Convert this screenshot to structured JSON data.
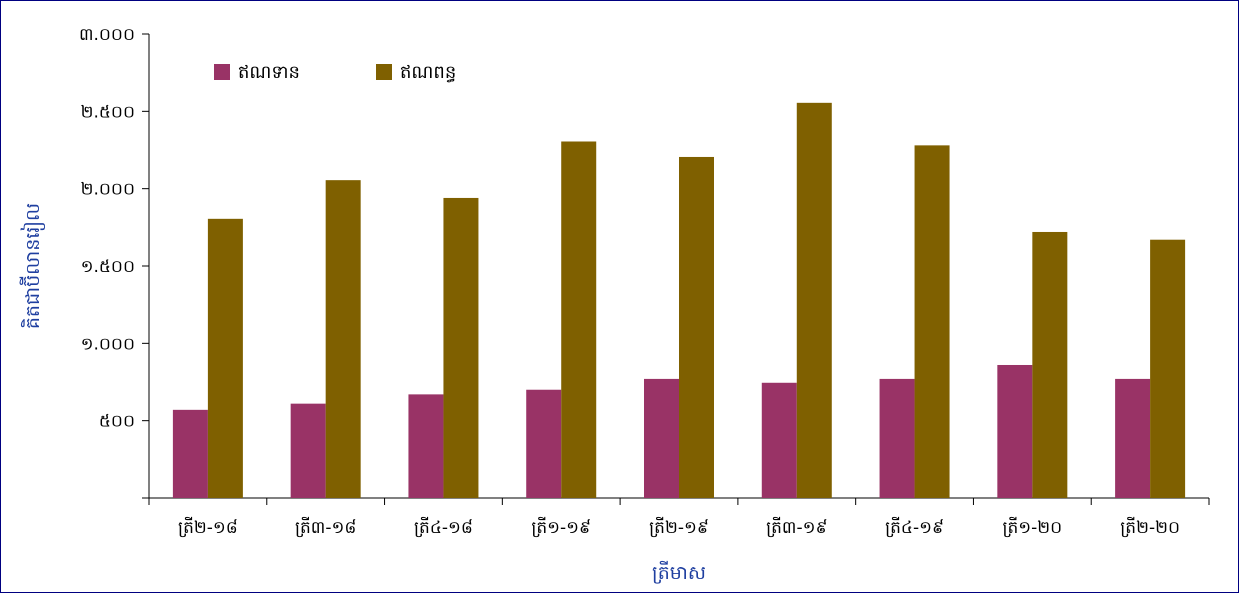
{
  "chart_data": {
    "type": "bar",
    "title": "",
    "xlabel": "ត្រីមាស",
    "ylabel": "គិតជាប៊ីលានរៀល",
    "ylim": [
      0,
      3000
    ],
    "yticks": [
      "",
      "៥០០",
      "១.០០០",
      "១.៥០០",
      "២.០០០",
      "២.៥០០",
      "៣.០០០"
    ],
    "ytick_values": [
      0,
      500,
      1000,
      1500,
      2000,
      2500,
      3000
    ],
    "categories": [
      "ត្រី២-១៨",
      "ត្រី៣-១៨",
      "ត្រី៤-១៨",
      "ត្រី១-១៩",
      "ត្រី២-១៩",
      "ត្រី៣-១៩",
      "ត្រី៤-១៩",
      "ត្រី១-២០",
      "ត្រី២-២០"
    ],
    "series": [
      {
        "name": "ឥណទាន",
        "color": "#993366",
        "values": [
          570,
          610,
          670,
          700,
          770,
          745,
          770,
          860,
          770
        ]
      },
      {
        "name": "ឥណពន្ធ",
        "color": "#7f6000",
        "values": [
          1805,
          2055,
          1940,
          2305,
          2205,
          2555,
          2280,
          1720,
          1670
        ]
      }
    ],
    "grid": false,
    "legend_position": "top-left",
    "background": "#ffffff",
    "border_color": "#000080",
    "axis_title_color": "#1f3fa0"
  }
}
